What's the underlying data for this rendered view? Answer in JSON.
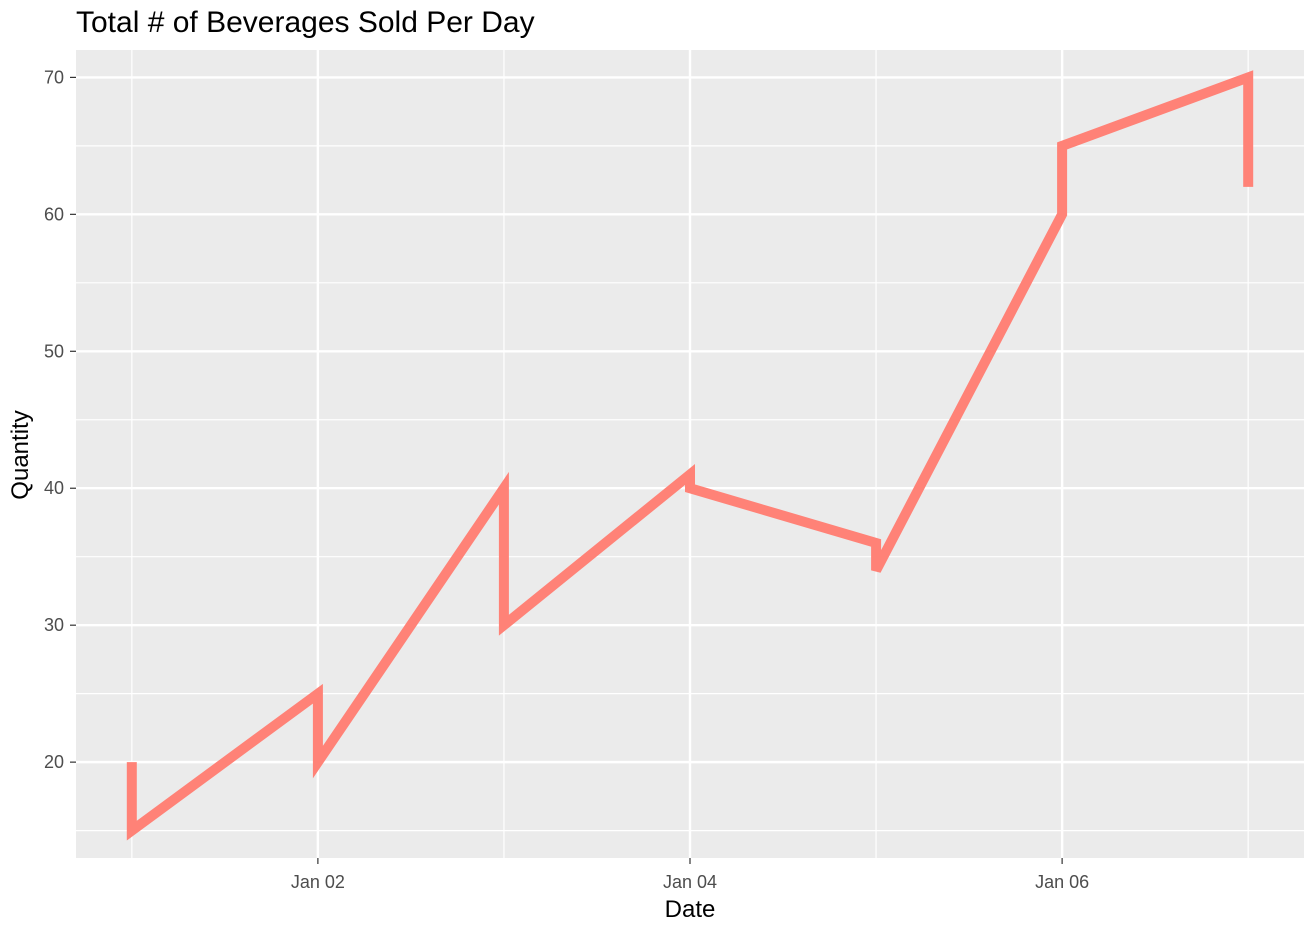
{
  "chart_data": {
    "type": "line",
    "title": "Total # of Beverages Sold Per Day",
    "xlabel": "Date",
    "ylabel": "Quantity",
    "x_ticks": [
      "Jan 02",
      "Jan 04",
      "Jan 06"
    ],
    "y_ticks": [
      20,
      30,
      40,
      50,
      60,
      70
    ],
    "ylim": [
      13,
      72
    ],
    "grid": true,
    "panel_background": "#EBEBEB",
    "grid_color": "#FFFFFF",
    "series": [
      {
        "color": "#FF8277",
        "points": [
          {
            "x": "2023-01-01",
            "y": 20
          },
          {
            "x": "2023-01-01",
            "y": 15
          },
          {
            "x": "2023-01-02",
            "y": 25
          },
          {
            "x": "2023-01-02",
            "y": 20
          },
          {
            "x": "2023-01-03",
            "y": 40
          },
          {
            "x": "2023-01-03",
            "y": 30
          },
          {
            "x": "2023-01-04",
            "y": 41
          },
          {
            "x": "2023-01-04",
            "y": 40
          },
          {
            "x": "2023-01-05",
            "y": 36
          },
          {
            "x": "2023-01-05",
            "y": 34
          },
          {
            "x": "2023-01-06",
            "y": 60
          },
          {
            "x": "2023-01-06",
            "y": 65
          },
          {
            "x": "2023-01-07",
            "y": 70
          },
          {
            "x": "2023-01-07",
            "y": 62
          }
        ]
      }
    ]
  }
}
